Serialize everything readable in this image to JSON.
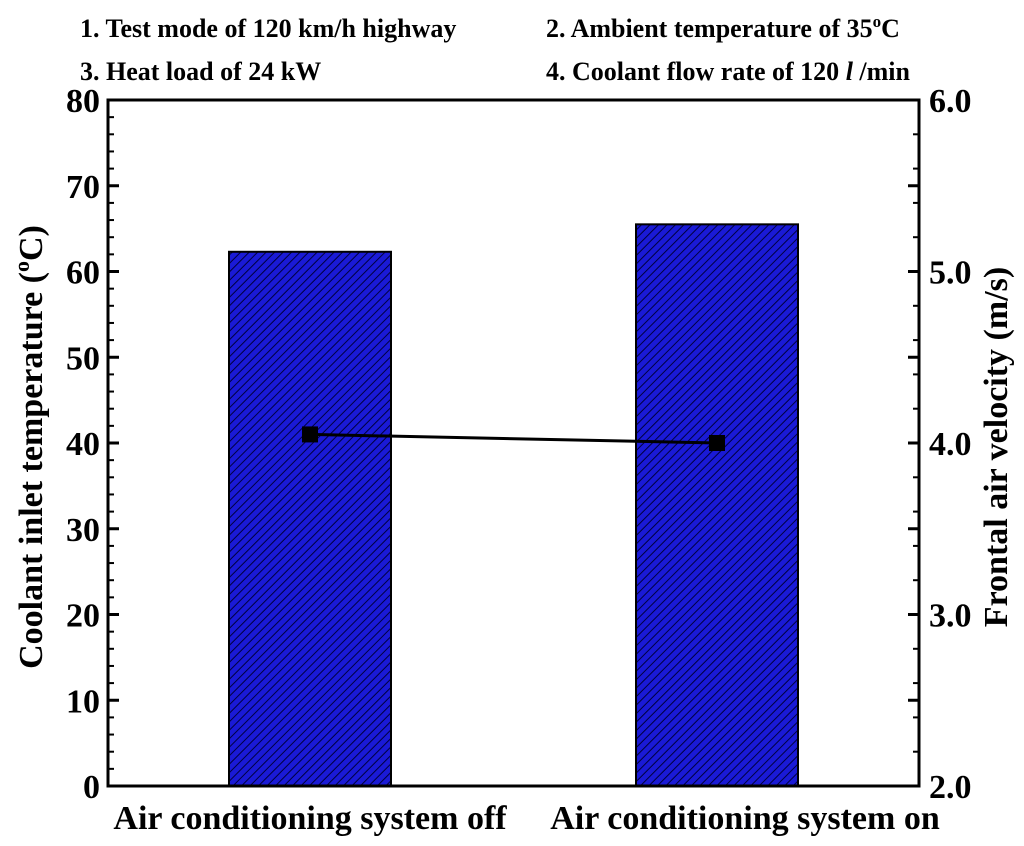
{
  "conditions": {
    "c1": "1. Test mode of 120 km/h highway",
    "c2_prefix": "2. Ambient temperature of 35",
    "c2_sup": "o",
    "c2_suffix": "C",
    "c3": "3. Heat load of 24 kW",
    "c4_prefix": "4. Coolant flow rate of 120 ",
    "c4_italic": "l",
    "c4_suffix": " /min"
  },
  "chart_data": {
    "type": "bar",
    "categories": [
      "Air conditioning system off",
      "Air conditioning system on"
    ],
    "series": [
      {
        "type": "bar",
        "axis": "left",
        "values": [
          62.3,
          65.5
        ],
        "color": "#1010c8",
        "hatch": true
      },
      {
        "type": "line",
        "axis": "right",
        "values": [
          4.05,
          4.0
        ],
        "color": "#000000",
        "marker": "square"
      }
    ],
    "ylabel_left": {
      "prefix": "Coolant inlet temperature (",
      "sup": "o",
      "suffix": "C)"
    },
    "ylabel_right": "Frontal air velocity (m/s)",
    "ylim_left": [
      0,
      80
    ],
    "ylim_right": [
      2.0,
      6.0
    ],
    "yticks_left": [
      "0",
      "10",
      "20",
      "30",
      "40",
      "50",
      "60",
      "70",
      "80"
    ],
    "yticks_right": [
      "2.0",
      "3.0",
      "4.0",
      "5.0",
      "6.0"
    ],
    "grid": false
  }
}
